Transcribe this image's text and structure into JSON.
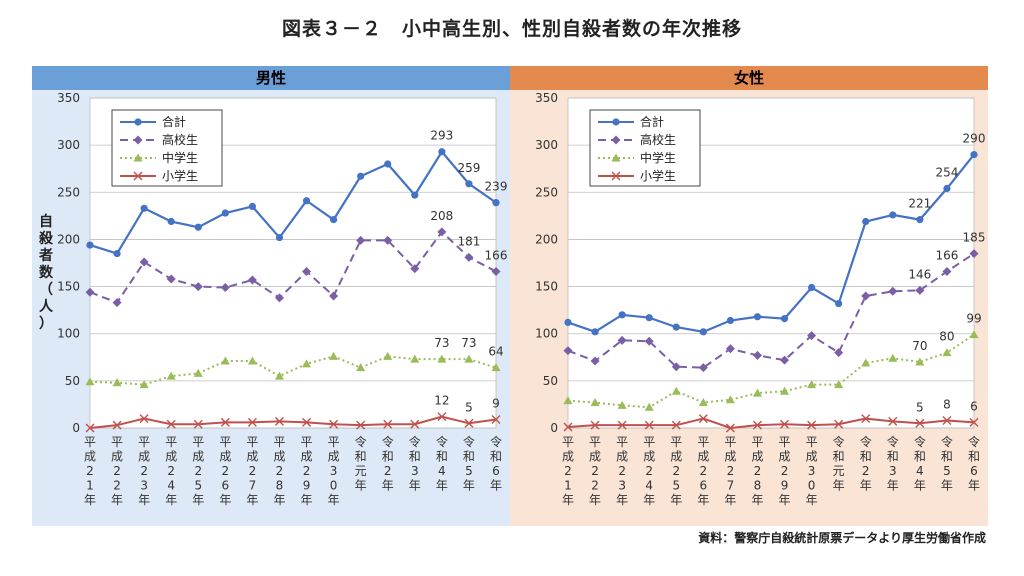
{
  "title": "図表３－２　小中高生別、性別自殺者数の年次推移",
  "source": "資料：警察庁自殺統計原票データより厚生労働省作成",
  "colors": {
    "total": "#4472c4",
    "high": "#7b5fa6",
    "middle": "#9bbb59",
    "elem": "#c0504d"
  },
  "chart_data": [
    {
      "type": "line",
      "title": "男性",
      "ylabel": "自殺者数（人）",
      "ylim": [
        0,
        350
      ],
      "yticks": [
        0,
        50,
        100,
        150,
        200,
        250,
        300,
        350
      ],
      "grid": true,
      "legend_position": "top-left",
      "categories": [
        "平成21年",
        "平成22年",
        "平成23年",
        "平成24年",
        "平成25年",
        "平成26年",
        "平成27年",
        "平成28年",
        "平成29年",
        "平成30年",
        "令和元年",
        "令和2年",
        "令和3年",
        "令和4年",
        "令和5年",
        "令和6年"
      ],
      "series": [
        {
          "name": "合計",
          "values": [
            194,
            185,
            233,
            219,
            213,
            228,
            235,
            202,
            241,
            221,
            267,
            280,
            247,
            293,
            259,
            239
          ]
        },
        {
          "name": "高校生",
          "values": [
            144,
            133,
            176,
            158,
            150,
            149,
            157,
            138,
            166,
            140,
            199,
            199,
            169,
            208,
            181,
            166
          ]
        },
        {
          "name": "中学生",
          "values": [
            49,
            48,
            46,
            55,
            58,
            71,
            71,
            55,
            68,
            76,
            64,
            76,
            73,
            73,
            73,
            64
          ]
        },
        {
          "name": "小学生",
          "values": [
            0,
            3,
            10,
            4,
            4,
            6,
            6,
            7,
            6,
            4,
            3,
            4,
            4,
            12,
            5,
            9
          ]
        }
      ],
      "data_labels": [
        {
          "series": 0,
          "index": 13,
          "text": "293"
        },
        {
          "series": 0,
          "index": 14,
          "text": "259"
        },
        {
          "series": 0,
          "index": 15,
          "text": "239"
        },
        {
          "series": 1,
          "index": 13,
          "text": "208"
        },
        {
          "series": 1,
          "index": 14,
          "text": "181"
        },
        {
          "series": 1,
          "index": 15,
          "text": "166"
        },
        {
          "series": 2,
          "index": 13,
          "text": "73"
        },
        {
          "series": 2,
          "index": 14,
          "text": "73"
        },
        {
          "series": 2,
          "index": 15,
          "text": "64"
        },
        {
          "series": 3,
          "index": 13,
          "text": "12"
        },
        {
          "series": 3,
          "index": 14,
          "text": "5"
        },
        {
          "series": 3,
          "index": 15,
          "text": "9"
        }
      ]
    },
    {
      "type": "line",
      "title": "女性",
      "ylabel": "",
      "ylim": [
        0,
        350
      ],
      "yticks": [
        0,
        50,
        100,
        150,
        200,
        250,
        300,
        350
      ],
      "grid": true,
      "legend_position": "top-left",
      "categories": [
        "平成21年",
        "平成22年",
        "平成23年",
        "平成24年",
        "平成25年",
        "平成26年",
        "平成27年",
        "平成28年",
        "平成29年",
        "平成30年",
        "令和元年",
        "令和2年",
        "令和3年",
        "令和4年",
        "令和5年",
        "令和6年"
      ],
      "series": [
        {
          "name": "合計",
          "values": [
            112,
            102,
            120,
            117,
            107,
            102,
            114,
            118,
            116,
            149,
            132,
            219,
            226,
            221,
            254,
            290
          ]
        },
        {
          "name": "高校生",
          "values": [
            82,
            71,
            93,
            92,
            65,
            64,
            84,
            77,
            72,
            98,
            80,
            140,
            145,
            146,
            166,
            185
          ]
        },
        {
          "name": "中学生",
          "values": [
            29,
            27,
            24,
            22,
            39,
            27,
            30,
            37,
            39,
            46,
            46,
            69,
            74,
            70,
            80,
            99
          ]
        },
        {
          "name": "小学生",
          "values": [
            1,
            3,
            3,
            3,
            3,
            10,
            0,
            3,
            4,
            3,
            4,
            10,
            7,
            5,
            8,
            6
          ]
        }
      ],
      "data_labels": [
        {
          "series": 0,
          "index": 13,
          "text": "221"
        },
        {
          "series": 0,
          "index": 14,
          "text": "254"
        },
        {
          "series": 0,
          "index": 15,
          "text": "290"
        },
        {
          "series": 1,
          "index": 13,
          "text": "146"
        },
        {
          "series": 1,
          "index": 14,
          "text": "166"
        },
        {
          "series": 1,
          "index": 15,
          "text": "185"
        },
        {
          "series": 2,
          "index": 13,
          "text": "70"
        },
        {
          "series": 2,
          "index": 14,
          "text": "80"
        },
        {
          "series": 2,
          "index": 15,
          "text": "99"
        },
        {
          "series": 3,
          "index": 13,
          "text": "5"
        },
        {
          "series": 3,
          "index": 14,
          "text": "8"
        },
        {
          "series": 3,
          "index": 15,
          "text": "6"
        }
      ]
    }
  ]
}
